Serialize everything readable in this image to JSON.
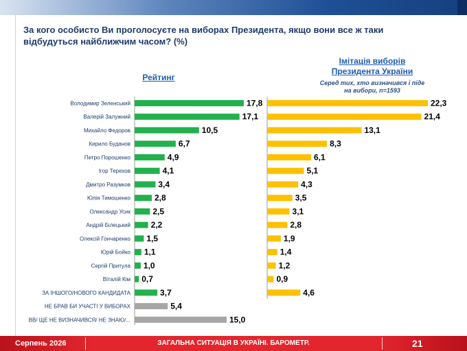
{
  "question": "За кого особисто Ви проголосуєте на виборах Президента, якщо вони все ж таки відбудуться найближчим часом? (%)",
  "footer": {
    "date": "Серпень 2026",
    "title": "ЗАГАЛЬНА СИТУАЦІЯ В УКРАЇНІ. БАРОМЕТР.",
    "page": "21"
  },
  "colors": {
    "green": "#22b14c",
    "orange": "#ffc000",
    "gray": "#a6a6a6",
    "header": "#1d5cb0",
    "footer": "#e3262d"
  },
  "chart_data": [
    {
      "type": "bar",
      "title": "Рейтинг",
      "categories": [
        "Володимир Зеленський",
        "Валерій Залужний",
        "Михайло Федоров",
        "Кирило Буданов",
        "Петро Порошенко",
        "Ігор Терехов",
        "Дмитро Разумков",
        "Юлія Тимошенко",
        "Олександр Усик",
        "Андрій Білецький",
        "Олексій Гончаренко",
        "Юрій Бойко",
        "Сергій Притула",
        "Віталій Кім",
        "ЗА ІНШОГО/НОВОГО КАНДИДАТА",
        "НЕ БРАВ БИ УЧАСТІ У ВИБОРАХ",
        "ВВ/ ЩЕ НЕ ВИЗНАЧИВСЯ/ НЕ ЗНАЮ/..."
      ],
      "values": [
        17.8,
        17.1,
        10.5,
        6.7,
        4.9,
        4.1,
        3.4,
        2.8,
        2.5,
        2.2,
        1.5,
        1.1,
        1.0,
        0.7,
        3.7,
        5.4,
        15.0
      ],
      "value_labels": [
        "17,8",
        "17,1",
        "10,5",
        "6,7",
        "4,9",
        "4,1",
        "3,4",
        "2,8",
        "2,5",
        "2,2",
        "1,5",
        "1,1",
        "1,0",
        "0,7",
        "3,7",
        "5,4",
        "15,0"
      ],
      "bar_colors": [
        "green",
        "green",
        "green",
        "green",
        "green",
        "green",
        "green",
        "green",
        "green",
        "green",
        "green",
        "green",
        "green",
        "green",
        "green",
        "gray",
        "gray"
      ],
      "orientation": "horizontal"
    },
    {
      "type": "bar",
      "title": "Імітація виборів Президента України",
      "subtitle": "Серед тих, хто визначився і піде на вибори, n=1593",
      "categories": [
        "Володимир Зеленський",
        "Валерій Залужний",
        "Михайло Федоров",
        "Кирило Буданов",
        "Петро Порошенко",
        "Ігор Терехов",
        "Дмитро Разумков",
        "Юлія Тимошенко",
        "Олександр Усик",
        "Андрій Білецький",
        "Олексій Гончаренко",
        "Юрій Бойко",
        "Сергій Притула",
        "Віталій Кім",
        "ЗА ІНШОГО/НОВОГО КАНДИДАТА"
      ],
      "values": [
        22.3,
        21.4,
        13.1,
        8.3,
        6.1,
        5.1,
        4.3,
        3.5,
        3.1,
        2.8,
        1.9,
        1.4,
        1.2,
        0.9,
        4.6
      ],
      "value_labels": [
        "22,3",
        "21,4",
        "13,1",
        "8,3",
        "6,1",
        "5,1",
        "4,3",
        "3,5",
        "3,1",
        "2,8",
        "1,9",
        "1,4",
        "1,2",
        "0,9",
        "4,6"
      ],
      "orientation": "horizontal"
    }
  ]
}
